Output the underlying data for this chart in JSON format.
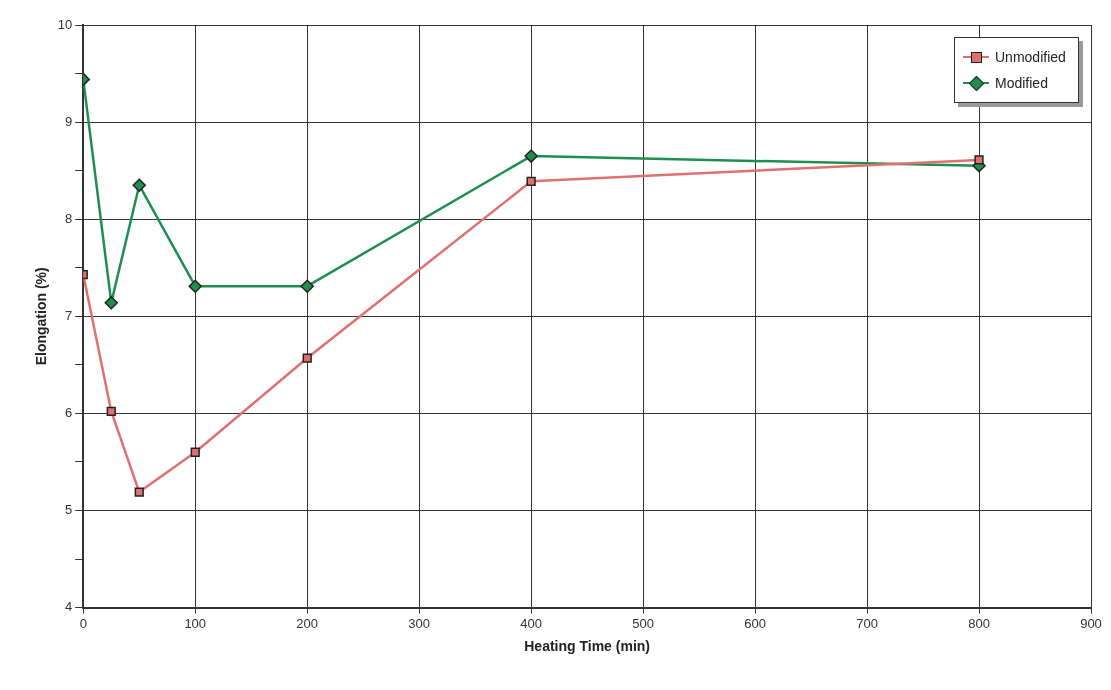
{
  "chart_data": {
    "type": "line",
    "xlabel": "Heating Time (min)",
    "ylabel": "Elongation (%)",
    "x": [
      0,
      25,
      50,
      100,
      200,
      400,
      800
    ],
    "series": [
      {
        "name": "Unmodified",
        "color": "#e07070",
        "marker": "square",
        "values": [
          7.43,
          6.02,
          5.19,
          5.6,
          6.57,
          8.39,
          8.61
        ]
      },
      {
        "name": "Modified",
        "color": "#1f8f4f",
        "marker": "diamond",
        "values": [
          9.44,
          7.14,
          8.35,
          7.31,
          7.31,
          8.65,
          8.55
        ]
      }
    ],
    "xlim": [
      0,
      900
    ],
    "xticks": [
      0,
      100,
      200,
      300,
      400,
      500,
      600,
      700,
      800,
      900
    ],
    "ylim": [
      4,
      10
    ],
    "yticks": [
      4,
      {
        "value": 4.5,
        "label": null
      },
      5,
      {
        "value": 5.5,
        "label": null
      },
      6,
      {
        "value": 6.5,
        "label": null
      },
      7,
      {
        "value": 7.5,
        "label": null
      },
      8,
      {
        "value": 8.5,
        "label": null
      },
      9,
      {
        "value": 9.5,
        "label": null
      },
      10
    ],
    "grid": true,
    "legend": "top right",
    "line_style": "solid"
  }
}
